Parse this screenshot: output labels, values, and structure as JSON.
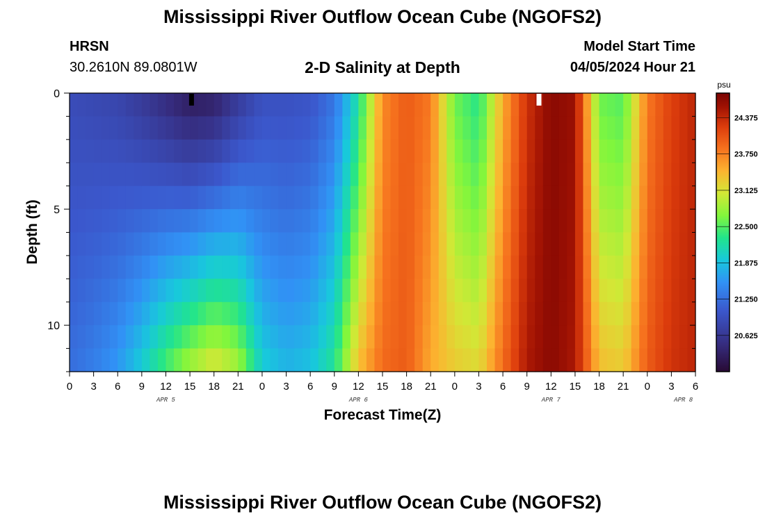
{
  "header": {
    "title": "Mississippi River Outflow Ocean Cube (NGOFS2)",
    "station_id": "HRSN",
    "station_coords": "30.2610N  89.0801W",
    "subtitle": "2-D Salinity at Depth",
    "model_label": "Model Start Time",
    "model_time": "04/05/2024 Hour 21"
  },
  "footer": {
    "title": "Mississippi River Outflow Ocean Cube (NGOFS2)"
  },
  "chart_data": {
    "type": "heatmap",
    "title": "2-D Salinity at Depth",
    "xlabel": "Forecast Time(Z)",
    "ylabel": "Depth (ft)",
    "x_unit": "forecast hour",
    "x_range": [
      0,
      78
    ],
    "y_range": [
      0,
      12
    ],
    "y_ticks": [
      0,
      5,
      10
    ],
    "x_tick_labels": [
      "0",
      "3",
      "6",
      "9",
      "12",
      "15",
      "18",
      "21",
      "0",
      "3",
      "6",
      "9",
      "12",
      "15",
      "18",
      "21",
      "0",
      "3",
      "6",
      "9",
      "12",
      "15",
      "18",
      "21",
      "0",
      "3",
      "6"
    ],
    "date_labels": [
      {
        "text": "APR 5",
        "hour": 12
      },
      {
        "text": "APR 6",
        "hour": 36
      },
      {
        "text": "APR 7",
        "hour": 60
      },
      {
        "text": "APR 8",
        "hour": 76.5
      }
    ],
    "colorbar": {
      "unit": "psu",
      "min": 20.0,
      "max": 24.8,
      "tick_labels": [
        "24.375",
        "23.750",
        "23.125",
        "22.500",
        "21.875",
        "21.250",
        "20.625"
      ],
      "tick_values": [
        24.375,
        23.75,
        23.125,
        22.5,
        21.875,
        21.25,
        20.625
      ]
    },
    "profile": {
      "hours": [
        0,
        3,
        6,
        9,
        12,
        15,
        18,
        21,
        24,
        27,
        30,
        33,
        36,
        39,
        42,
        45,
        48,
        51,
        54,
        57,
        60,
        63,
        66,
        69,
        72,
        75,
        78
      ],
      "surface": [
        20.9,
        20.85,
        20.8,
        20.65,
        20.45,
        20.25,
        20.3,
        20.65,
        20.95,
        20.95,
        21.0,
        21.3,
        22.2,
        23.7,
        24.0,
        23.8,
        22.6,
        22.3,
        23.5,
        24.3,
        24.7,
        24.6,
        22.6,
        22.5,
        23.8,
        24.2,
        24.4
      ],
      "bottom": [
        21.25,
        21.4,
        21.6,
        22.0,
        22.5,
        22.9,
        23.2,
        22.9,
        22.0,
        21.8,
        21.9,
        22.3,
        23.4,
        23.9,
        24.0,
        23.5,
        23.3,
        23.2,
        23.9,
        24.5,
        24.7,
        24.5,
        23.4,
        23.3,
        24.0,
        24.3,
        24.4
      ]
    },
    "markers": [
      {
        "hour": 15.2,
        "color": "#000000"
      },
      {
        "hour": 58.5,
        "color": "#ffffff"
      }
    ]
  }
}
